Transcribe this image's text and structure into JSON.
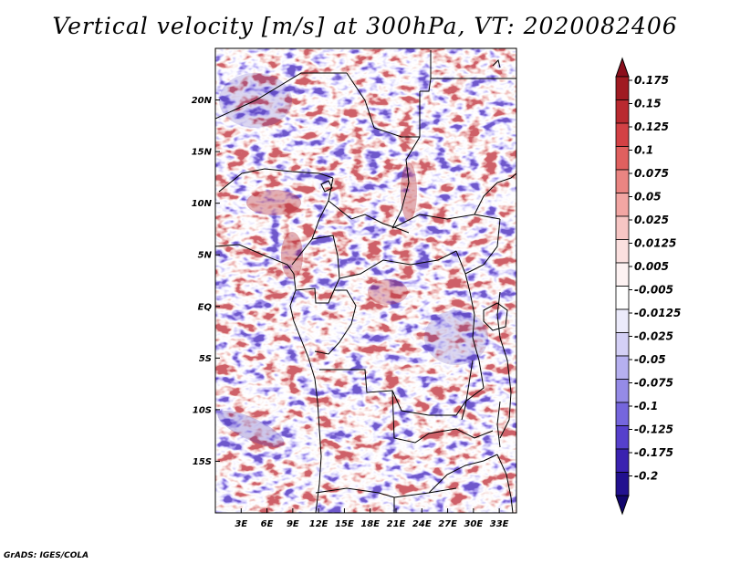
{
  "title": "Vertical velocity [m/s] at 300hPa, VT: 2020082406",
  "credit": "GrADS: IGES/COLA",
  "colors": {
    "positive_high": "#a31621",
    "positive_low": "#fbe3e3",
    "negative_low": "#e9e6fb",
    "negative_high": "#1c0a8c",
    "border": "#000000"
  },
  "map": {
    "lon_range": [
      0,
      35
    ],
    "lat_range": [
      -20,
      25
    ],
    "lat_ticks": [
      {
        "value": 20,
        "label": "20N"
      },
      {
        "value": 15,
        "label": "15N"
      },
      {
        "value": 10,
        "label": "10N"
      },
      {
        "value": 5,
        "label": "5N"
      },
      {
        "value": 0,
        "label": "EQ"
      },
      {
        "value": -5,
        "label": "5S"
      },
      {
        "value": -10,
        "label": "10S"
      },
      {
        "value": -15,
        "label": "15S"
      }
    ],
    "lon_ticks": [
      {
        "value": 3,
        "label": "3E"
      },
      {
        "value": 6,
        "label": "6E"
      },
      {
        "value": 9,
        "label": "9E"
      },
      {
        "value": 12,
        "label": "12E"
      },
      {
        "value": 15,
        "label": "15E"
      },
      {
        "value": 18,
        "label": "18E"
      },
      {
        "value": 21,
        "label": "21E"
      },
      {
        "value": 24,
        "label": "24E"
      },
      {
        "value": 27,
        "label": "27E"
      },
      {
        "value": 30,
        "label": "30E"
      },
      {
        "value": 33,
        "label": "33E"
      }
    ]
  },
  "colorbar": {
    "levels": [
      {
        "label": "0.175",
        "color": "#a01b22"
      },
      {
        "label": "0.15",
        "color": "#b92a30"
      },
      {
        "label": "0.125",
        "color": "#d34145"
      },
      {
        "label": "0.1",
        "color": "#e0605f"
      },
      {
        "label": "0.075",
        "color": "#ea8582"
      },
      {
        "label": "0.05",
        "color": "#f2a6a3"
      },
      {
        "label": "0.025",
        "color": "#f7c6c4"
      },
      {
        "label": "0.0125",
        "color": "#fbe0df"
      },
      {
        "label": "0.005",
        "color": "#fdf2f2"
      },
      {
        "label": "-0.005",
        "color": "#ffffff"
      },
      {
        "label": "-0.0125",
        "color": "#ecebfb"
      },
      {
        "label": "-0.025",
        "color": "#d4d0f6"
      },
      {
        "label": "-0.05",
        "color": "#b6b0f0"
      },
      {
        "label": "-0.075",
        "color": "#958be7"
      },
      {
        "label": "-0.1",
        "color": "#7566dd"
      },
      {
        "label": "-0.125",
        "color": "#5640cc"
      },
      {
        "label": "-0.175",
        "color": "#3a22b0"
      },
      {
        "label": "-0.2",
        "color": "#22118f"
      }
    ],
    "top_extension_color": "#8b0f1c",
    "bottom_extension_color": "#12066d"
  }
}
